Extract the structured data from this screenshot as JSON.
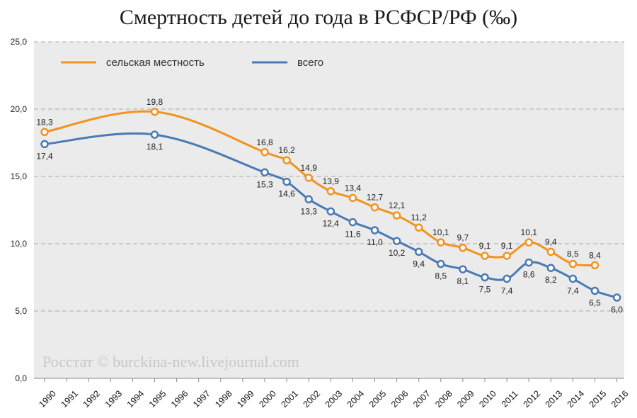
{
  "chart_data": {
    "type": "line",
    "title": "Смертность детей до года в РСФСР/РФ (‰)",
    "categories": [
      "1990",
      "1991",
      "1992",
      "1993",
      "1994",
      "1995",
      "1996",
      "1997",
      "1998",
      "1999",
      "2000",
      "2001",
      "2002",
      "2003",
      "2004",
      "2005",
      "2006",
      "2007",
      "2008",
      "2009",
      "2010",
      "2011",
      "2012",
      "2013",
      "2014",
      "2015",
      "2016"
    ],
    "y_ticks": [
      "0,0",
      "5,0",
      "10,0",
      "15,0",
      "20,0",
      "25,0"
    ],
    "ylim": [
      0,
      25
    ],
    "grid": "horizontal dashed",
    "legend_position": "top-left",
    "series": [
      {
        "name": "сельская местность",
        "color": "#f0941f",
        "points": [
          {
            "x": "1990",
            "y": 18.3,
            "label": "18,3"
          },
          {
            "x": "1995",
            "y": 19.8,
            "label": "19,8"
          },
          {
            "x": "2000",
            "y": 16.8,
            "label": "16,8"
          },
          {
            "x": "2001",
            "y": 16.2,
            "label": "16,2"
          },
          {
            "x": "2002",
            "y": 14.9,
            "label": "14,9"
          },
          {
            "x": "2003",
            "y": 13.9,
            "label": "13,9"
          },
          {
            "x": "2004",
            "y": 13.4,
            "label": "13,4"
          },
          {
            "x": "2005",
            "y": 12.7,
            "label": "12,7"
          },
          {
            "x": "2006",
            "y": 12.1,
            "label": "12,1"
          },
          {
            "x": "2007",
            "y": 11.2,
            "label": "11,2"
          },
          {
            "x": "2008",
            "y": 10.1,
            "label": "10,1"
          },
          {
            "x": "2009",
            "y": 9.7,
            "label": "9,7"
          },
          {
            "x": "2010",
            "y": 9.1,
            "label": "9,1"
          },
          {
            "x": "2011",
            "y": 9.1,
            "label": "9,1"
          },
          {
            "x": "2012",
            "y": 10.1,
            "label": "10,1"
          },
          {
            "x": "2013",
            "y": 9.4,
            "label": "9,4"
          },
          {
            "x": "2014",
            "y": 8.5,
            "label": "8,5"
          },
          {
            "x": "2015",
            "y": 8.4,
            "label": "8,4"
          }
        ]
      },
      {
        "name": "всего",
        "color": "#4a7ab5",
        "points": [
          {
            "x": "1990",
            "y": 17.4,
            "label": "17,4"
          },
          {
            "x": "1995",
            "y": 18.1,
            "label": "18,1"
          },
          {
            "x": "2000",
            "y": 15.3,
            "label": "15,3"
          },
          {
            "x": "2001",
            "y": 14.6,
            "label": "14,6"
          },
          {
            "x": "2002",
            "y": 13.3,
            "label": "13,3"
          },
          {
            "x": "2003",
            "y": 12.4,
            "label": "12,4"
          },
          {
            "x": "2004",
            "y": 11.6,
            "label": "11,6"
          },
          {
            "x": "2005",
            "y": 11.0,
            "label": "11,0"
          },
          {
            "x": "2006",
            "y": 10.2,
            "label": "10,2"
          },
          {
            "x": "2007",
            "y": 9.4,
            "label": "9,4"
          },
          {
            "x": "2008",
            "y": 8.5,
            "label": "8,5"
          },
          {
            "x": "2009",
            "y": 8.1,
            "label": "8,1"
          },
          {
            "x": "2010",
            "y": 7.5,
            "label": "7,5"
          },
          {
            "x": "2011",
            "y": 7.4,
            "label": "7,4"
          },
          {
            "x": "2012",
            "y": 8.6,
            "label": "8,6"
          },
          {
            "x": "2013",
            "y": 8.2,
            "label": "8,2"
          },
          {
            "x": "2014",
            "y": 7.4,
            "label": "7,4"
          },
          {
            "x": "2015",
            "y": 6.5,
            "label": "6,5"
          },
          {
            "x": "2016",
            "y": 6.0,
            "label": "6,0"
          }
        ]
      }
    ],
    "watermark": "Росстат © burckina-new.livejournal.com"
  }
}
